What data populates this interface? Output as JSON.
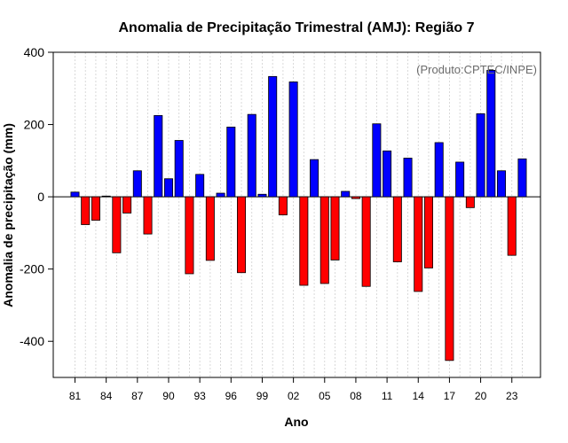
{
  "chart_data": {
    "type": "bar",
    "title": "Anomalia de Precipitação Trimestral (AMJ): Região 7",
    "xlabel": "Ano",
    "ylabel": "Anomalia de precipitação (mm)",
    "credit": "(Produto:CPTEC/INPE)",
    "ylim": [
      -500,
      400
    ],
    "yticks": [
      -400,
      -200,
      0,
      200,
      400
    ],
    "x_tick_labels": [
      "81",
      "84",
      "87",
      "90",
      "93",
      "96",
      "99",
      "02",
      "05",
      "08",
      "11",
      "14",
      "17",
      "20",
      "23"
    ],
    "x_tick_years": [
      1981,
      1984,
      1987,
      1990,
      1993,
      1996,
      1999,
      2002,
      2005,
      2008,
      2011,
      2014,
      2017,
      2020,
      2023
    ],
    "grid": true,
    "positive_color": "#0000ff",
    "negative_color": "#ff0000",
    "years": [
      1981,
      1982,
      1983,
      1984,
      1985,
      1986,
      1987,
      1988,
      1989,
      1990,
      1991,
      1992,
      1993,
      1994,
      1995,
      1996,
      1997,
      1998,
      1999,
      2000,
      2001,
      2002,
      2003,
      2004,
      2005,
      2006,
      2007,
      2008,
      2009,
      2010,
      2011,
      2012,
      2013,
      2014,
      2015,
      2016,
      2017,
      2018,
      2019,
      2020,
      2021,
      2022,
      2023,
      2024
    ],
    "values": [
      13,
      -77,
      -65,
      2,
      -155,
      -45,
      72,
      -103,
      225,
      50,
      156,
      -213,
      62,
      -176,
      10,
      193,
      -210,
      228,
      7,
      333,
      -50,
      318,
      -245,
      103,
      -240,
      -175,
      15,
      -5,
      -248,
      202,
      127,
      -180,
      107,
      -262,
      -197,
      150,
      -453,
      96,
      -30,
      230,
      350,
      72,
      -162,
      105
    ]
  }
}
